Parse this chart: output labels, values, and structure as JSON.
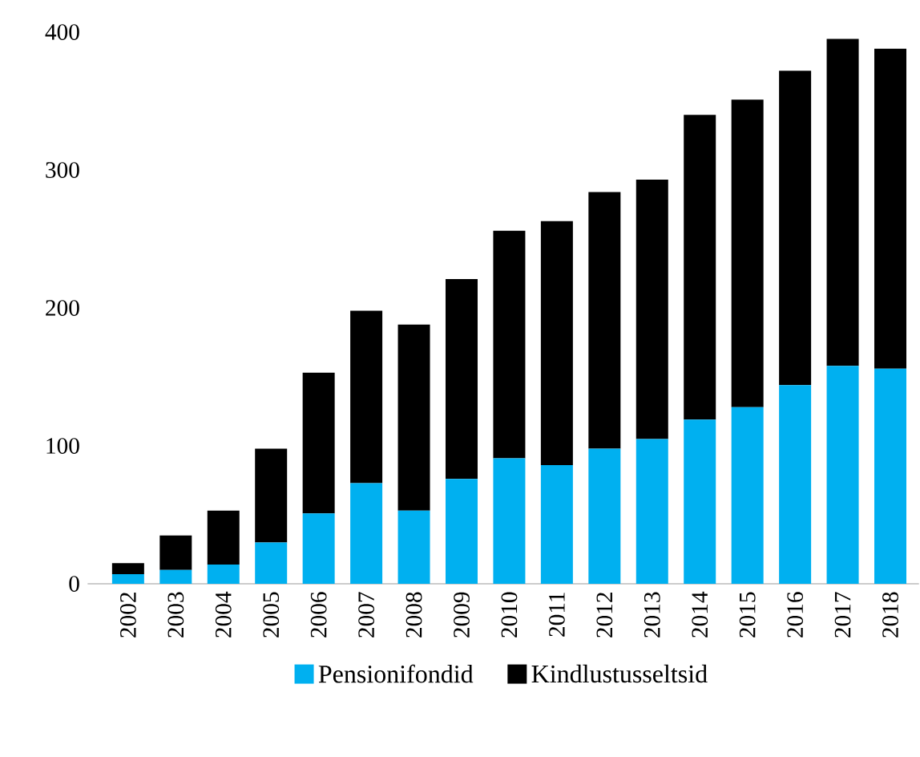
{
  "chart_data": {
    "type": "bar",
    "stacked": true,
    "categories": [
      "2002",
      "2003",
      "2004",
      "2005",
      "2006",
      "2007",
      "2008",
      "2009",
      "2010",
      "2011",
      "2012",
      "2013",
      "2014",
      "2015",
      "2016",
      "2017",
      "2018"
    ],
    "series": [
      {
        "name": "Pensionifondid",
        "color": "#00b0f0",
        "values": [
          7,
          10,
          14,
          30,
          51,
          73,
          53,
          76,
          91,
          86,
          98,
          105,
          119,
          128,
          144,
          158,
          156
        ]
      },
      {
        "name": "Kindlustusseltsid",
        "color": "#000000",
        "values": [
          8,
          25,
          39,
          68,
          102,
          125,
          135,
          145,
          165,
          177,
          186,
          188,
          221,
          223,
          228,
          237,
          232
        ]
      }
    ],
    "ylim": [
      0,
      400
    ],
    "yticks": [
      0,
      100,
      200,
      300,
      400
    ],
    "legend": "bottom"
  }
}
